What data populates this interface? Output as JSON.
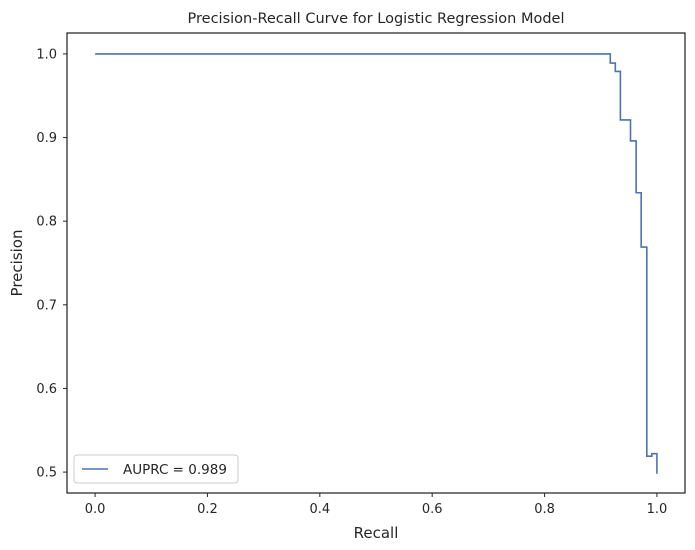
{
  "chart_data": {
    "type": "line",
    "title": "Precision-Recall Curve for Logistic Regression Model",
    "xlabel": "Recall",
    "ylabel": "Precision",
    "xlim": [
      -0.05,
      1.05
    ],
    "ylim": [
      0.475,
      1.025
    ],
    "xticks": [
      0.0,
      0.2,
      0.4,
      0.6,
      0.8,
      1.0
    ],
    "xtick_labels": [
      "0.0",
      "0.2",
      "0.4",
      "0.6",
      "0.8",
      "1.0"
    ],
    "yticks": [
      0.5,
      0.6,
      0.7,
      0.8,
      0.9,
      1.0
    ],
    "ytick_labels": [
      "0.5",
      "0.6",
      "0.7",
      "0.8",
      "0.9",
      "1.0"
    ],
    "grid": false,
    "legend_position": "lower-left",
    "color": "#4c72b0",
    "series": [
      {
        "name": "AUPRC = 0.989",
        "step": true,
        "x": [
          0.0,
          0.917,
          0.917,
          0.926,
          0.926,
          0.935,
          0.935,
          0.953,
          0.953,
          0.963,
          0.963,
          0.972,
          0.972,
          0.982,
          0.982,
          0.991,
          0.991,
          1.0,
          1.0
        ],
        "y": [
          1.0,
          1.0,
          0.989,
          0.989,
          0.979,
          0.979,
          0.921,
          0.921,
          0.896,
          0.896,
          0.834,
          0.834,
          0.769,
          0.769,
          0.519,
          0.519,
          0.522,
          0.522,
          0.498
        ]
      }
    ]
  }
}
